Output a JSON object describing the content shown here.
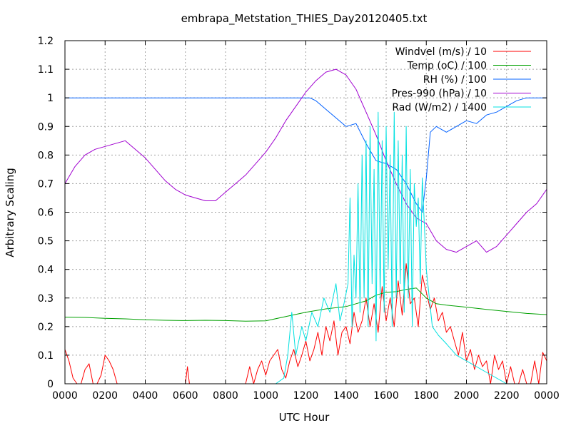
{
  "chart_data": {
    "type": "line",
    "title": "embrapa_Metstation_THIES_Day20120405.txt",
    "xlabel": "UTC Hour",
    "ylabel": "Arbitrary Scaling",
    "xlim": [
      0,
      24
    ],
    "ylim": [
      0,
      1.2
    ],
    "grid": true,
    "legend_position": "top-right",
    "x_ticks": [
      {
        "value": 0,
        "label": "0000"
      },
      {
        "value": 2,
        "label": "0200"
      },
      {
        "value": 4,
        "label": "0400"
      },
      {
        "value": 6,
        "label": "0600"
      },
      {
        "value": 8,
        "label": "0800"
      },
      {
        "value": 10,
        "label": "1000"
      },
      {
        "value": 12,
        "label": "1200"
      },
      {
        "value": 14,
        "label": "1400"
      },
      {
        "value": 16,
        "label": "1600"
      },
      {
        "value": 18,
        "label": "1800"
      },
      {
        "value": 20,
        "label": "2000"
      },
      {
        "value": 22,
        "label": "2200"
      },
      {
        "value": 24,
        "label": "0000"
      }
    ],
    "y_ticks": [
      {
        "value": 0,
        "label": "0"
      },
      {
        "value": 0.1,
        "label": "0.1"
      },
      {
        "value": 0.2,
        "label": "0.2"
      },
      {
        "value": 0.3,
        "label": "0.3"
      },
      {
        "value": 0.4,
        "label": "0.4"
      },
      {
        "value": 0.5,
        "label": "0.5"
      },
      {
        "value": 0.6,
        "label": "0.6"
      },
      {
        "value": 0.7,
        "label": "0.7"
      },
      {
        "value": 0.8,
        "label": "0.8"
      },
      {
        "value": 0.9,
        "label": "0.9"
      },
      {
        "value": 1.0,
        "label": "1"
      },
      {
        "value": 1.1,
        "label": "1.1"
      },
      {
        "value": 1.2,
        "label": "1.2"
      }
    ],
    "series": [
      {
        "name": "Windvel (m/s) / 10",
        "color": "#ff0000",
        "x": [
          0,
          0.2,
          0.4,
          0.6,
          0.8,
          1.0,
          1.2,
          1.4,
          1.6,
          1.8,
          2.0,
          2.2,
          2.4,
          2.6,
          2.8,
          3.0,
          3.5,
          4.0,
          4.5,
          5.0,
          5.5,
          6.0,
          6.1,
          6.2,
          6.3,
          6.5,
          7.0,
          7.5,
          8.0,
          8.5,
          9.0,
          9.2,
          9.4,
          9.6,
          9.8,
          10.0,
          10.2,
          10.4,
          10.6,
          10.8,
          11.0,
          11.2,
          11.4,
          11.6,
          11.8,
          12.0,
          12.2,
          12.4,
          12.6,
          12.8,
          13.0,
          13.2,
          13.4,
          13.6,
          13.8,
          14.0,
          14.2,
          14.4,
          14.6,
          14.8,
          15.0,
          15.2,
          15.4,
          15.6,
          15.8,
          16.0,
          16.2,
          16.4,
          16.6,
          16.8,
          17.0,
          17.2,
          17.4,
          17.6,
          17.8,
          18.0,
          18.2,
          18.4,
          18.6,
          18.8,
          19.0,
          19.2,
          19.4,
          19.6,
          19.8,
          20.0,
          20.2,
          20.4,
          20.6,
          20.8,
          21.0,
          21.2,
          21.4,
          21.6,
          21.8,
          22.0,
          22.2,
          22.4,
          22.6,
          22.8,
          23.0,
          23.2,
          23.4,
          23.6,
          23.8,
          24.0
        ],
        "y": [
          0.12,
          0.08,
          0.02,
          0,
          0,
          0.05,
          0.07,
          0,
          0,
          0.03,
          0.1,
          0.08,
          0.05,
          0,
          0,
          0,
          0,
          0,
          0,
          0,
          0,
          0,
          0.06,
          0,
          0,
          0,
          0,
          0,
          0,
          0,
          0,
          0.06,
          0,
          0.05,
          0.08,
          0.03,
          0.08,
          0.1,
          0.12,
          0.05,
          0.02,
          0.08,
          0.12,
          0.06,
          0.1,
          0.15,
          0.08,
          0.12,
          0.18,
          0.1,
          0.2,
          0.15,
          0.22,
          0.1,
          0.18,
          0.2,
          0.14,
          0.25,
          0.18,
          0.22,
          0.3,
          0.2,
          0.28,
          0.18,
          0.34,
          0.22,
          0.3,
          0.2,
          0.36,
          0.24,
          0.42,
          0.28,
          0.3,
          0.2,
          0.38,
          0.32,
          0.26,
          0.3,
          0.22,
          0.25,
          0.18,
          0.2,
          0.15,
          0.1,
          0.18,
          0.08,
          0.12,
          0.05,
          0.1,
          0.06,
          0.08,
          0,
          0.1,
          0.05,
          0.08,
          0,
          0.06,
          0,
          0,
          0.05,
          0,
          0,
          0.08,
          0,
          0.11,
          0.08
        ]
      },
      {
        "name": "Temp (oC) / 100",
        "color": "#00a000",
        "x": [
          0,
          1,
          2,
          3,
          4,
          5,
          6,
          7,
          8,
          9,
          10,
          11,
          12,
          13,
          14,
          14.5,
          15,
          15.5,
          16,
          16.5,
          17,
          17.5,
          18,
          18.5,
          19,
          20,
          21,
          22,
          23,
          24
        ],
        "y": [
          0.233,
          0.232,
          0.229,
          0.227,
          0.224,
          0.222,
          0.221,
          0.222,
          0.221,
          0.219,
          0.22,
          0.235,
          0.25,
          0.262,
          0.27,
          0.28,
          0.29,
          0.31,
          0.32,
          0.322,
          0.33,
          0.335,
          0.3,
          0.28,
          0.275,
          0.268,
          0.26,
          0.253,
          0.246,
          0.242
        ]
      },
      {
        "name": "RH (%) / 100",
        "color": "#0060ff",
        "x": [
          0,
          2,
          4,
          6,
          8,
          10,
          11,
          12,
          12.2,
          12.5,
          13,
          13.5,
          14,
          14.5,
          15,
          15.5,
          16,
          16.5,
          17,
          17.5,
          17.8,
          18,
          18.2,
          18.5,
          19,
          19.5,
          20,
          20.5,
          21,
          21.5,
          22,
          22.5,
          23,
          24
        ],
        "y": [
          1,
          1,
          1,
          1,
          1,
          1,
          1,
          1,
          1.0,
          0.99,
          0.96,
          0.93,
          0.9,
          0.91,
          0.84,
          0.78,
          0.77,
          0.75,
          0.7,
          0.63,
          0.6,
          0.72,
          0.88,
          0.9,
          0.88,
          0.9,
          0.92,
          0.91,
          0.94,
          0.95,
          0.97,
          0.99,
          1,
          1
        ]
      },
      {
        "name": "Pres-990 (hPa) / 10",
        "color": "#a000d0",
        "x": [
          0,
          0.5,
          1,
          1.5,
          2,
          2.5,
          3,
          3.5,
          4,
          4.5,
          5,
          5.5,
          6,
          6.5,
          7,
          7.5,
          8,
          8.5,
          9,
          9.5,
          10,
          10.5,
          11,
          11.5,
          12,
          12.5,
          13,
          13.5,
          14,
          14.5,
          15,
          15.5,
          16,
          16.5,
          17,
          17.5,
          18,
          18.5,
          19,
          19.5,
          20,
          20.5,
          21,
          21.5,
          22,
          22.5,
          23,
          23.5,
          24
        ],
        "y": [
          0.7,
          0.76,
          0.8,
          0.82,
          0.83,
          0.84,
          0.85,
          0.82,
          0.79,
          0.75,
          0.71,
          0.68,
          0.66,
          0.65,
          0.64,
          0.64,
          0.67,
          0.7,
          0.73,
          0.77,
          0.81,
          0.86,
          0.92,
          0.97,
          1.02,
          1.06,
          1.09,
          1.1,
          1.08,
          1.03,
          0.95,
          0.87,
          0.78,
          0.7,
          0.63,
          0.58,
          0.56,
          0.5,
          0.47,
          0.46,
          0.48,
          0.5,
          0.46,
          0.48,
          0.52,
          0.56,
          0.6,
          0.63,
          0.68
        ]
      },
      {
        "name": "Rad (W/m2) / 1400",
        "color": "#00e0e0",
        "x": [
          0,
          10.5,
          10.9,
          11.1,
          11.3,
          11.5,
          11.8,
          12.0,
          12.3,
          12.6,
          12.9,
          13.2,
          13.5,
          13.7,
          13.9,
          14.1,
          14.2,
          14.3,
          14.4,
          14.5,
          14.6,
          14.7,
          14.8,
          14.9,
          15.0,
          15.1,
          15.2,
          15.3,
          15.4,
          15.5,
          15.6,
          15.7,
          15.8,
          15.9,
          16.0,
          16.1,
          16.2,
          16.3,
          16.4,
          16.5,
          16.6,
          16.7,
          16.8,
          16.9,
          17.0,
          17.1,
          17.2,
          17.3,
          17.4,
          17.5,
          17.6,
          17.7,
          17.8,
          18.0,
          18.3,
          18.6,
          19.0,
          19.5,
          20.0,
          20.5,
          21.0,
          21.5,
          22.0,
          22.5,
          24
        ],
        "y": [
          0,
          0,
          0.02,
          0.1,
          0.25,
          0.1,
          0.2,
          0.15,
          0.25,
          0.2,
          0.3,
          0.25,
          0.35,
          0.22,
          0.28,
          0.35,
          0.65,
          0.2,
          0.45,
          0.3,
          0.7,
          0.25,
          0.8,
          0.3,
          0.85,
          0.2,
          0.9,
          0.35,
          0.75,
          0.15,
          0.95,
          0.3,
          0.85,
          0.25,
          0.9,
          0.4,
          0.8,
          0.2,
          0.95,
          0.3,
          0.85,
          0.35,
          0.8,
          0.25,
          0.9,
          0.3,
          0.75,
          0.2,
          0.7,
          0.55,
          0.65,
          0.35,
          0.72,
          0.4,
          0.2,
          0.17,
          0.14,
          0.1,
          0.08,
          0.06,
          0.04,
          0.02,
          0,
          0,
          0
        ]
      }
    ]
  }
}
